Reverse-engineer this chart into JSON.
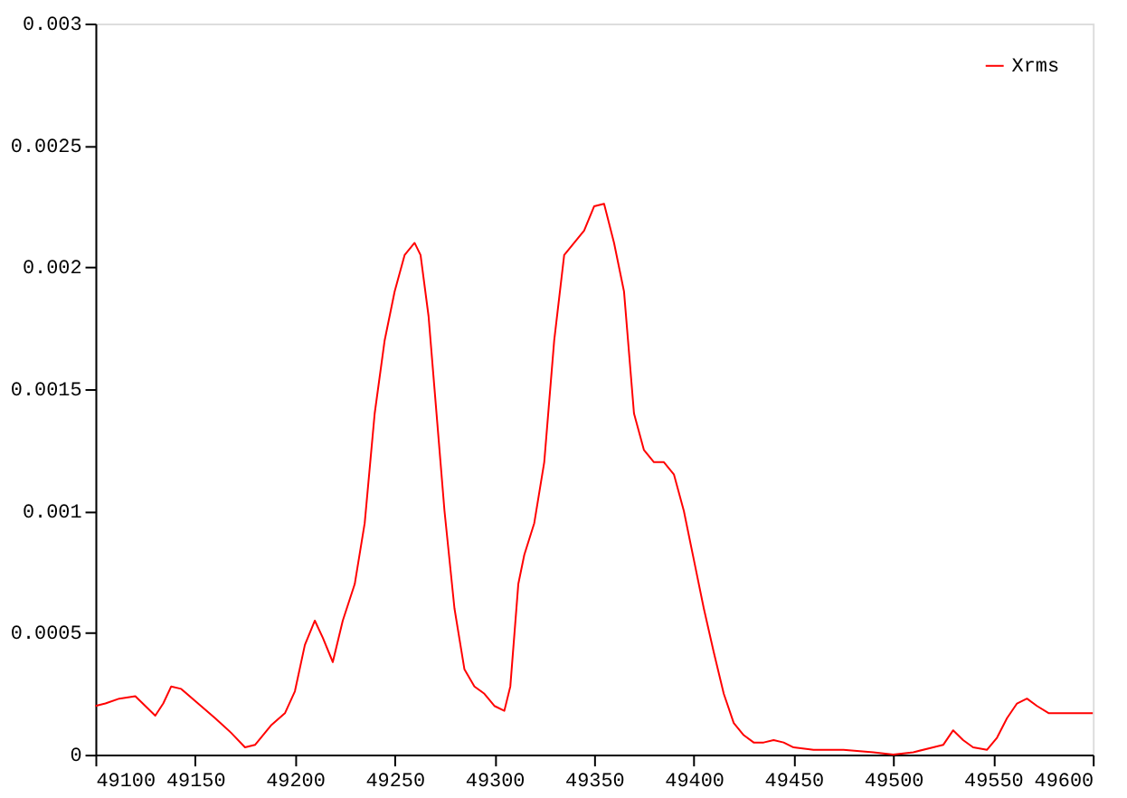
{
  "chart_data": {
    "type": "line",
    "x": [
      49100,
      49105,
      49112,
      49120,
      49125,
      49130,
      49134,
      49138,
      49143,
      49150,
      49160,
      49168,
      49175,
      49180,
      49188,
      49195,
      49200,
      49205,
      49210,
      49214,
      49219,
      49224,
      49230,
      49235,
      49240,
      49245,
      49250,
      49255,
      49260,
      49263,
      49267,
      49270,
      49275,
      49280,
      49285,
      49290,
      49295,
      49300,
      49305,
      49308,
      49312,
      49315,
      49320,
      49325,
      49330,
      49335,
      49340,
      49345,
      49350,
      49355,
      49360,
      49365,
      49370,
      49375,
      49380,
      49385,
      49390,
      49395,
      49400,
      49405,
      49410,
      49415,
      49420,
      49425,
      49430,
      49435,
      49440,
      49445,
      49450,
      49460,
      49475,
      49490,
      49500,
      49510,
      49520,
      49525,
      49530,
      49535,
      49540,
      49547,
      49552,
      49557,
      49562,
      49567,
      49572,
      49578,
      49585,
      49592,
      49600
    ],
    "series": [
      {
        "name": "Xrms",
        "color": "#ff0000",
        "values": [
          0.0002,
          0.00021,
          0.00023,
          0.00024,
          0.0002,
          0.00016,
          0.00021,
          0.00028,
          0.00027,
          0.00022,
          0.00015,
          9e-05,
          3e-05,
          4e-05,
          0.00012,
          0.00017,
          0.00026,
          0.00045,
          0.00055,
          0.00048,
          0.00038,
          0.00055,
          0.0007,
          0.00095,
          0.0014,
          0.0017,
          0.0019,
          0.00205,
          0.0021,
          0.00205,
          0.0018,
          0.0015,
          0.001,
          0.0006,
          0.00035,
          0.00028,
          0.00025,
          0.0002,
          0.00018,
          0.00028,
          0.0007,
          0.00082,
          0.00095,
          0.0012,
          0.0017,
          0.00205,
          0.0021,
          0.00215,
          0.00225,
          0.00226,
          0.0021,
          0.0019,
          0.0014,
          0.00125,
          0.0012,
          0.0012,
          0.00115,
          0.001,
          0.0008,
          0.0006,
          0.00042,
          0.00025,
          0.00013,
          8e-05,
          5e-05,
          5e-05,
          6e-05,
          5e-05,
          3e-05,
          2e-05,
          2e-05,
          1e-05,
          0.0,
          1e-05,
          3e-05,
          4e-05,
          0.0001,
          6e-05,
          3e-05,
          2e-05,
          7e-05,
          0.00015,
          0.00021,
          0.00023,
          0.0002,
          0.00017,
          0.00017,
          0.00017,
          0.00017
        ]
      }
    ],
    "xlim": [
      49100,
      49600
    ],
    "xticks": [
      49100,
      49150,
      49200,
      49250,
      49300,
      49350,
      49400,
      49450,
      49500,
      49550,
      49600
    ],
    "ylim": [
      0,
      0.003
    ],
    "yticks": [
      0,
      0.0005,
      0.001,
      0.0015,
      0.002,
      0.0025,
      0.003
    ],
    "grid": false,
    "legend": "top right",
    "marker": "none",
    "line_style": "solid"
  }
}
